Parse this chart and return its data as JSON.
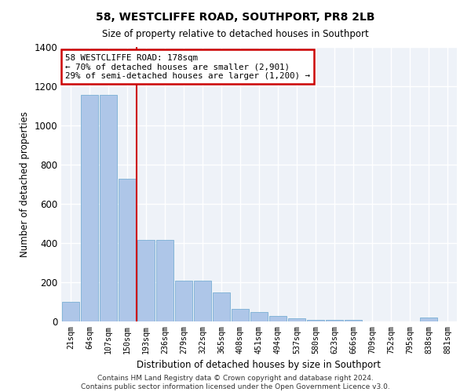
{
  "title": "58, WESTCLIFFE ROAD, SOUTHPORT, PR8 2LB",
  "subtitle": "Size of property relative to detached houses in Southport",
  "xlabel": "Distribution of detached houses by size in Southport",
  "ylabel": "Number of detached properties",
  "categories": [
    "21sqm",
    "64sqm",
    "107sqm",
    "150sqm",
    "193sqm",
    "236sqm",
    "279sqm",
    "322sqm",
    "365sqm",
    "408sqm",
    "451sqm",
    "494sqm",
    "537sqm",
    "580sqm",
    "623sqm",
    "666sqm",
    "709sqm",
    "752sqm",
    "795sqm",
    "838sqm",
    "881sqm"
  ],
  "values": [
    100,
    1155,
    1155,
    730,
    415,
    415,
    210,
    210,
    148,
    65,
    50,
    28,
    18,
    10,
    10,
    10,
    0,
    0,
    0,
    20,
    0
  ],
  "bar_color": "#aec6e8",
  "bar_edge_color": "#7aafd4",
  "annotation_text": "58 WESTCLIFFE ROAD: 178sqm\n← 70% of detached houses are smaller (2,901)\n29% of semi-detached houses are larger (1,200) →",
  "annotation_box_color": "#cc0000",
  "background_color": "#eef2f8",
  "grid_color": "#ffffff",
  "ylim": [
    0,
    1400
  ],
  "yticks": [
    0,
    200,
    400,
    600,
    800,
    1000,
    1200,
    1400
  ],
  "footer_line1": "Contains HM Land Registry data © Crown copyright and database right 2024.",
  "footer_line2": "Contains public sector information licensed under the Open Government Licence v3.0."
}
